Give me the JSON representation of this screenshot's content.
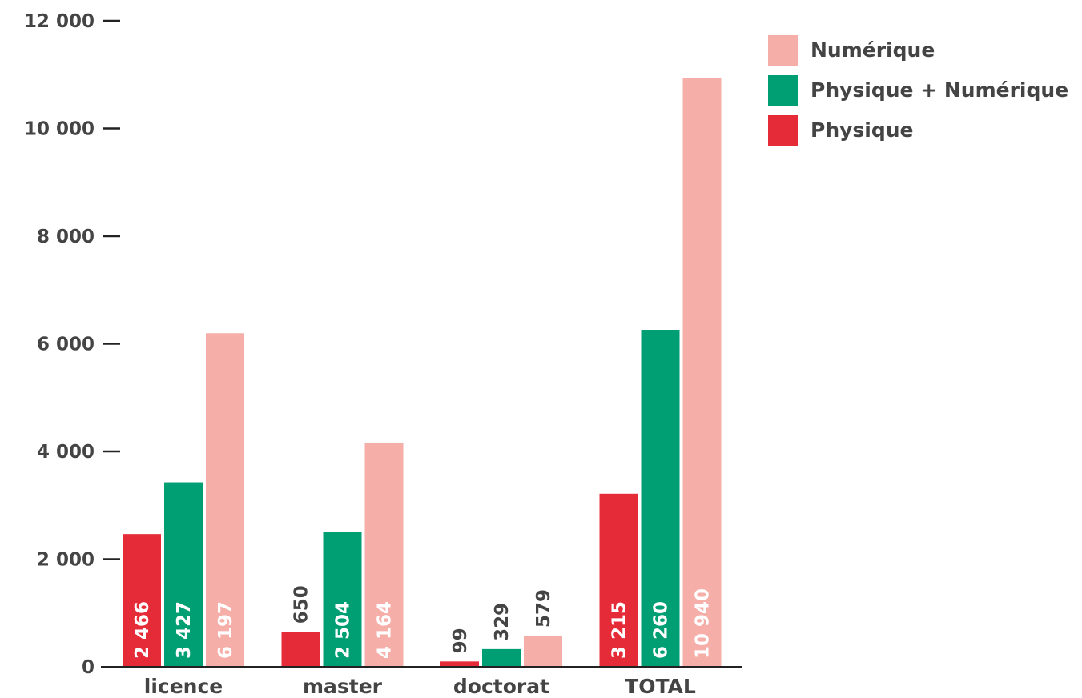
{
  "chart_data": {
    "type": "bar",
    "categories": [
      "licence",
      "master",
      "doctorat",
      "TOTAL"
    ],
    "series": [
      {
        "name": "Physique",
        "color": "#e52b38",
        "values": [
          2466,
          650,
          99,
          3215
        ],
        "labels": [
          "2 466",
          "650",
          "99",
          "3 215"
        ]
      },
      {
        "name": "Physique + Numérique",
        "color": "#009e73",
        "values": [
          3427,
          2504,
          329,
          6260
        ],
        "labels": [
          "3 427",
          "2 504",
          "329",
          "6 260"
        ]
      },
      {
        "name": "Numérique",
        "color": "#f5aea8",
        "values": [
          6197,
          4164,
          579,
          10940
        ],
        "labels": [
          "6 197",
          "4 164",
          "579",
          "10 940"
        ]
      }
    ],
    "ylim": [
      0,
      12000
    ],
    "yticks": [
      0,
      2000,
      4000,
      6000,
      8000,
      10000,
      12000
    ],
    "ytick_labels": [
      "0",
      "2 000",
      "4 000",
      "6 000",
      "8 000",
      "10 000",
      "12 000"
    ],
    "legend": {
      "position": "top-right",
      "entries": [
        "Numérique",
        "Physique + Numérique",
        "Physique"
      ]
    },
    "grid": false
  }
}
